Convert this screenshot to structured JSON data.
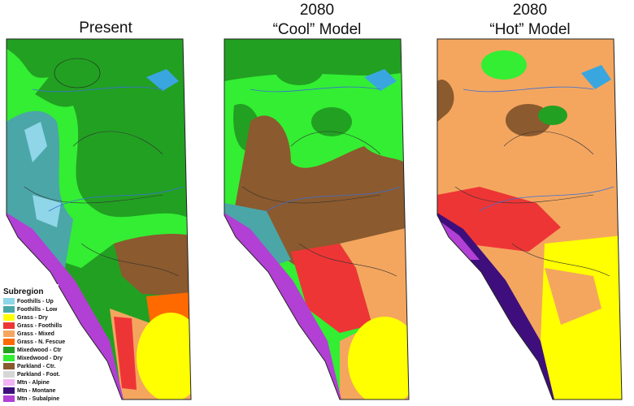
{
  "panels": [
    {
      "title_lines": [
        "Present"
      ]
    },
    {
      "title_lines": [
        "2080",
        "“Cool” Model"
      ]
    },
    {
      "title_lines": [
        "2080",
        "“Hot” Model"
      ]
    }
  ],
  "legend": {
    "title": "Subregion",
    "items": [
      {
        "label": "Foothills - Up",
        "color": "#8fd6e8"
      },
      {
        "label": "Foothills - Low",
        "color": "#4ba6a8"
      },
      {
        "label": "Grass - Dry",
        "color": "#ffff00"
      },
      {
        "label": "Grass - Foothills",
        "color": "#ee3535"
      },
      {
        "label": "Grass - Mixed",
        "color": "#f4a65f"
      },
      {
        "label": "Grass - N. Fescue",
        "color": "#ff6a00"
      },
      {
        "label": "Mixedwood - Ctr",
        "color": "#22a022"
      },
      {
        "label": "Mixedwood - Dry",
        "color": "#33ee33"
      },
      {
        "label": "Parkland - Ctr.",
        "color": "#8b5a2e"
      },
      {
        "label": "Parkland - Foot.",
        "color": "#d6d6d6"
      },
      {
        "label": "Mtn - Alpine",
        "color": "#f2b4f2"
      },
      {
        "label": "Mtn - Montane",
        "color": "#3e0f7c"
      },
      {
        "label": "Mtn - Subalpine",
        "color": "#b240d4"
      }
    ]
  }
}
